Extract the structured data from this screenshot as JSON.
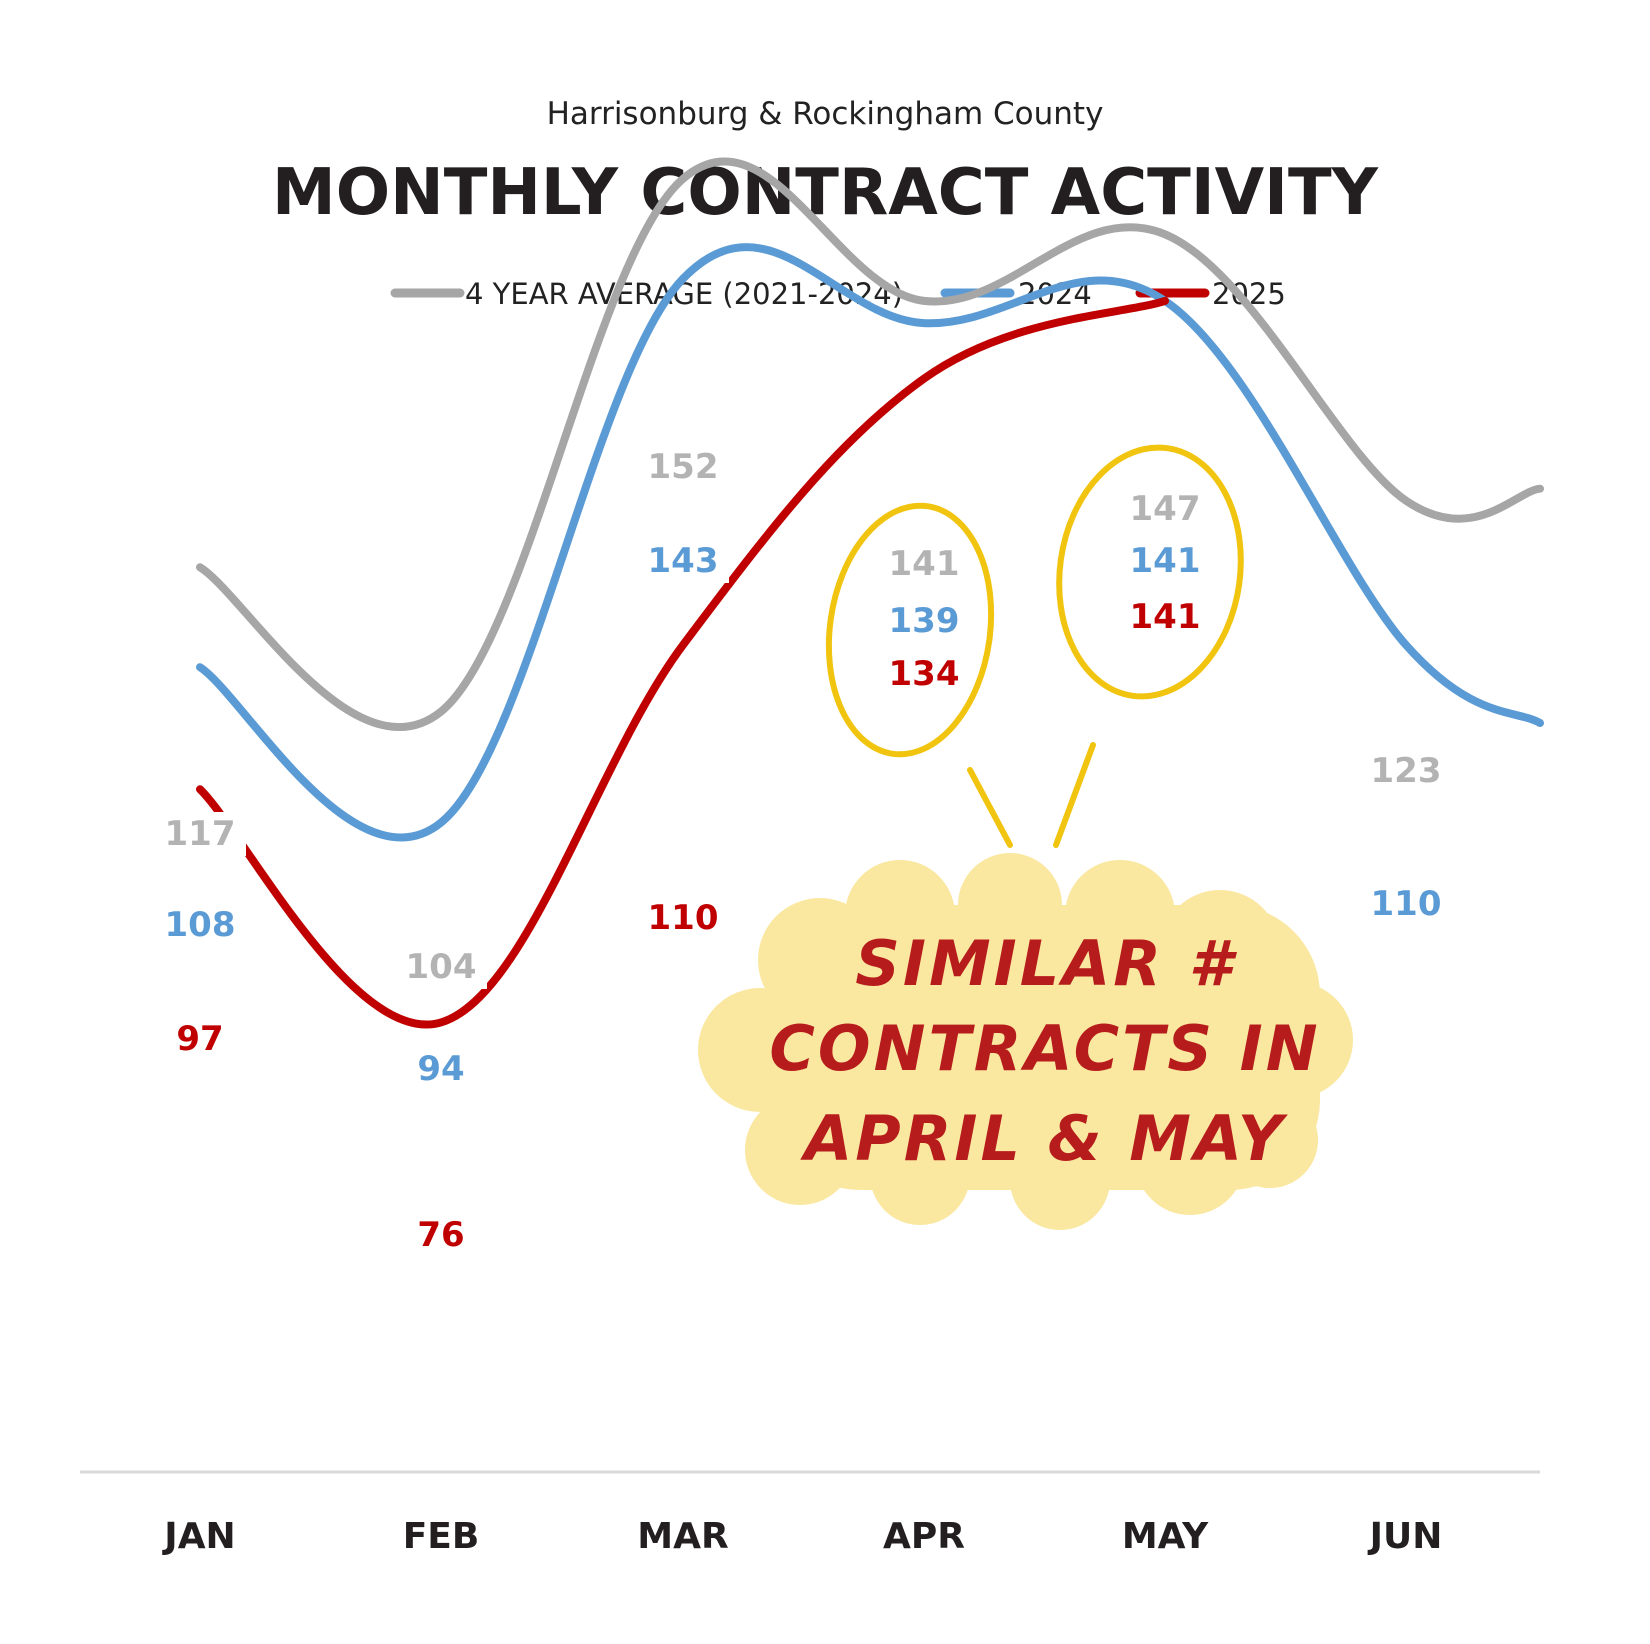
{
  "chart_data": {
    "type": "line",
    "subtitle": "Harrisonburg & Rockingham County",
    "title": "MONTHLY CONTRACT ACTIVITY",
    "categories": [
      "JAN",
      "FEB",
      "MAR",
      "APR",
      "MAY",
      "JUN"
    ],
    "series": [
      {
        "name": "4 YEAR AVERAGE (2021-2024)",
        "color": "#a6a6a6",
        "label_color": "#b3b3b3",
        "values": [
          117,
          104,
          152,
          141,
          147,
          123
        ]
      },
      {
        "name": "2024",
        "color": "#5b9bd5",
        "label_color": "#5b9bd5",
        "values": [
          108,
          94,
          143,
          139,
          141,
          110
        ]
      },
      {
        "name": "2025",
        "color": "#c00000",
        "label_color": "#c00000",
        "values": [
          97,
          76,
          110,
          134,
          141,
          null
        ]
      }
    ],
    "ylim": [
      50,
      175
    ],
    "grid": false,
    "legend": "top",
    "annotation": {
      "lines": [
        "SIMILAR #",
        "CONTRACTS IN",
        "APRIL & MAY"
      ],
      "highlight_color": "#fae7a0",
      "circle_color": "#f1c40f",
      "text_color": "#b71c1c"
    }
  }
}
